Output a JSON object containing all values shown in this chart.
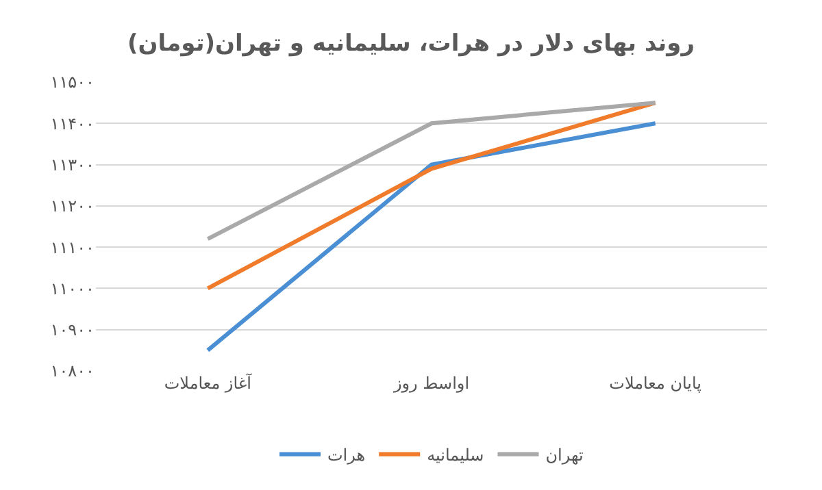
{
  "chart_data": {
    "type": "line",
    "title": "روند بهای دلار در هرات، سلیمانیه و تهران(تومان)",
    "categories": [
      "آغاز معاملات",
      "اواسط روز",
      "پایان معاملات"
    ],
    "series": [
      {
        "name": "هرات",
        "color": "#4a8fd4",
        "values": [
          10850,
          11300,
          11400
        ]
      },
      {
        "name": "سلیمانیه",
        "color": "#f07b2a",
        "values": [
          11000,
          11290,
          11450
        ]
      },
      {
        "name": "تهران",
        "color": "#a9a9a9",
        "values": [
          11120,
          11400,
          11450
        ]
      }
    ],
    "ylim": [
      10800,
      11500
    ],
    "yticks": [
      {
        "value": 10800,
        "label": "۱۰۸۰۰"
      },
      {
        "value": 10900,
        "label": "۱۰۹۰۰"
      },
      {
        "value": 11000,
        "label": "۱۱۰۰۰"
      },
      {
        "value": 11100,
        "label": "۱۱۱۰۰"
      },
      {
        "value": 11200,
        "label": "۱۱۲۰۰"
      },
      {
        "value": 11300,
        "label": "۱۱۳۰۰"
      },
      {
        "value": 11400,
        "label": "۱۱۴۰۰"
      },
      {
        "value": 11500,
        "label": "۱۱۵۰۰"
      }
    ],
    "grid": "y",
    "legend": "bottom",
    "marker": "none",
    "line_style": "solid"
  }
}
